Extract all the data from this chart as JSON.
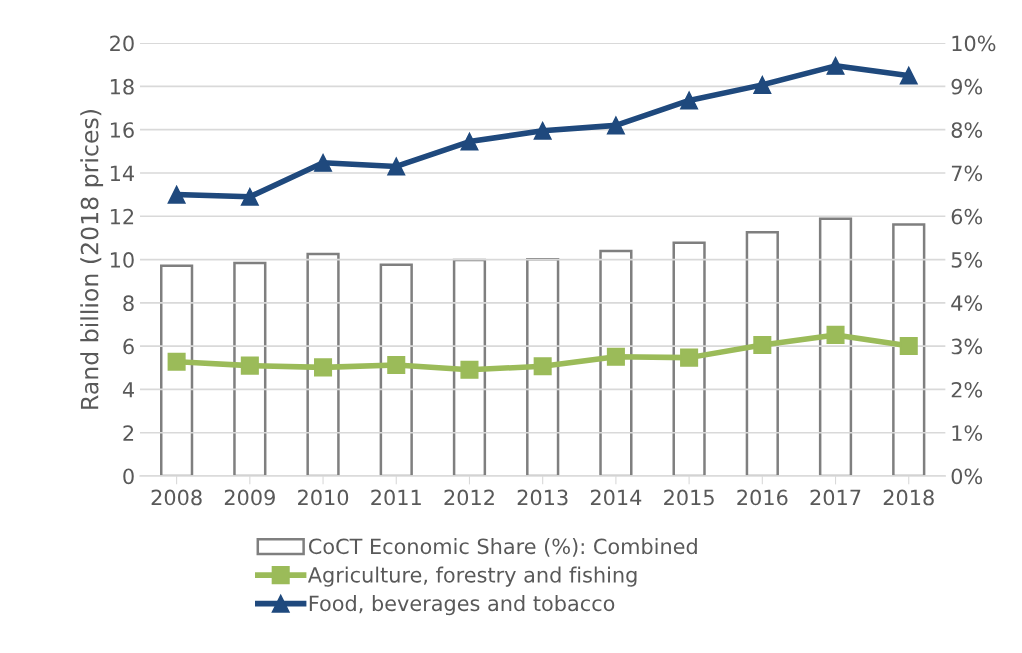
{
  "chart_data": {
    "type": "line",
    "ylabel": "Rand billion (2018 prices)",
    "categories": [
      "2008",
      "2009",
      "2010",
      "2011",
      "2012",
      "2013",
      "2014",
      "2015",
      "2016",
      "2017",
      "2018"
    ],
    "series": [
      {
        "name": "CoCT Economic Share (%): Combined",
        "type": "bar",
        "axis": "y2",
        "color": "#7f7f7f",
        "values": [
          4.86,
          4.92,
          5.13,
          4.88,
          4.99,
          5.01,
          5.2,
          5.39,
          5.63,
          5.94,
          5.81
        ]
      },
      {
        "name": "Agriculture, forestry and fishing",
        "marker": "square",
        "color": "#9bbb59",
        "values": [
          5.28,
          5.1,
          5.02,
          5.13,
          4.91,
          5.07,
          5.51,
          5.47,
          6.05,
          6.52,
          6.01
        ]
      },
      {
        "name": "Food, beverages and tobacco",
        "marker": "triangle",
        "color": "#1f497d",
        "values": [
          13.0,
          12.9,
          14.47,
          14.3,
          15.45,
          15.95,
          16.2,
          17.35,
          18.07,
          18.95,
          18.5
        ]
      }
    ],
    "ylim": [
      0,
      20
    ],
    "yticks": [
      0,
      2,
      4,
      6,
      8,
      10,
      12,
      14,
      16,
      18,
      20
    ],
    "y2lim": [
      0,
      10
    ],
    "y2ticks": [
      {
        "value": 0,
        "label": "0%"
      },
      {
        "value": 1,
        "label": "1%"
      },
      {
        "value": 2,
        "label": "2%"
      },
      {
        "value": 3,
        "label": "3%"
      },
      {
        "value": 4,
        "label": "4%"
      },
      {
        "value": 5,
        "label": "5%"
      },
      {
        "value": 6,
        "label": "6%"
      },
      {
        "value": 7,
        "label": "7%"
      },
      {
        "value": 8,
        "label": "8%"
      },
      {
        "value": 9,
        "label": "9%"
      },
      {
        "value": 10,
        "label": "10%"
      }
    ],
    "grid": "y",
    "legend": "bottom",
    "line_style": "solid"
  }
}
